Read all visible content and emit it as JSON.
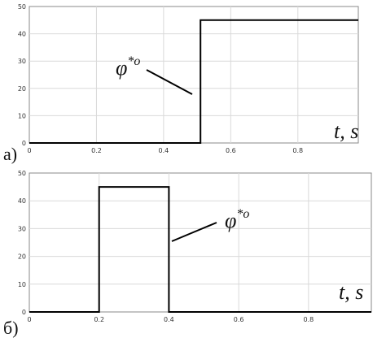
{
  "chart_data": [
    {
      "type": "line",
      "panel_label": "а)",
      "x": [
        0,
        0.51,
        0.51,
        0.98
      ],
      "values": [
        0,
        0,
        45,
        45
      ],
      "xlim": [
        0,
        0.98
      ],
      "ylim": [
        0,
        50
      ],
      "x_ticks": [
        "0",
        "0.2",
        "0.4",
        "0.6",
        "0.8"
      ],
      "y_ticks": [
        "0",
        "10",
        "20",
        "30",
        "40",
        "50"
      ],
      "xlabel": "t, s",
      "annotation": {
        "symbol": "φ",
        "superscript": "*o"
      },
      "grid": true
    },
    {
      "type": "line",
      "panel_label": "б)",
      "x": [
        0,
        0.2,
        0.2,
        0.4,
        0.4,
        0.98
      ],
      "values": [
        0,
        0,
        45,
        45,
        0,
        0
      ],
      "xlim": [
        0,
        0.98
      ],
      "ylim": [
        0,
        50
      ],
      "x_ticks": [
        "0",
        "0.2",
        "0.4",
        "0.6",
        "0.8"
      ],
      "y_ticks": [
        "0",
        "10",
        "20",
        "30",
        "40",
        "50"
      ],
      "xlabel": "t, s",
      "annotation": {
        "symbol": "φ",
        "superscript": "*o"
      },
      "grid": true
    }
  ]
}
